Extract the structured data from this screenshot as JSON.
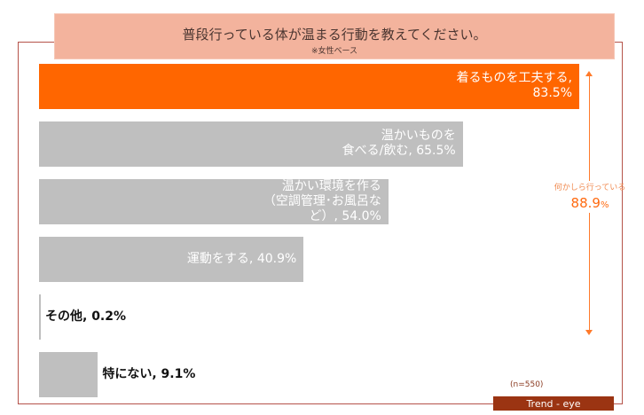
{
  "chart_data": {
    "type": "bar",
    "orientation": "horizontal",
    "title": "普段行っている体が温まる行動を教えてください。",
    "subtitle": "※女性ベース",
    "categories": [
      "着るものを工夫する",
      "温かいものを食べる/飲む",
      "温かい環境を作る（空調管理・お風呂など）",
      "運動をする",
      "その他",
      "特にない"
    ],
    "values": [
      83.5,
      65.5,
      54.0,
      40.9,
      0.2,
      9.1
    ],
    "data_labels": [
      "着るものを工夫する,\n83.5%",
      "温かいものを\n食べる/飲む, 65.5%",
      "温かい環境を作る\n（空調管理･お風呂な\nど）, 54.0%",
      "運動をする, 40.9%",
      "その他, 0.2%",
      "特にない, 9.1%"
    ],
    "unit": "%",
    "xlim": [
      0,
      100
    ],
    "grid": false,
    "colors": {
      "highlight": "#ff6600",
      "default": "#bfbfbf"
    },
    "annotation": {
      "label": "何かしら行っている",
      "value": "88.9",
      "unit": "%"
    },
    "sample_size": "(n=550)"
  },
  "brand": "Trend - eye"
}
